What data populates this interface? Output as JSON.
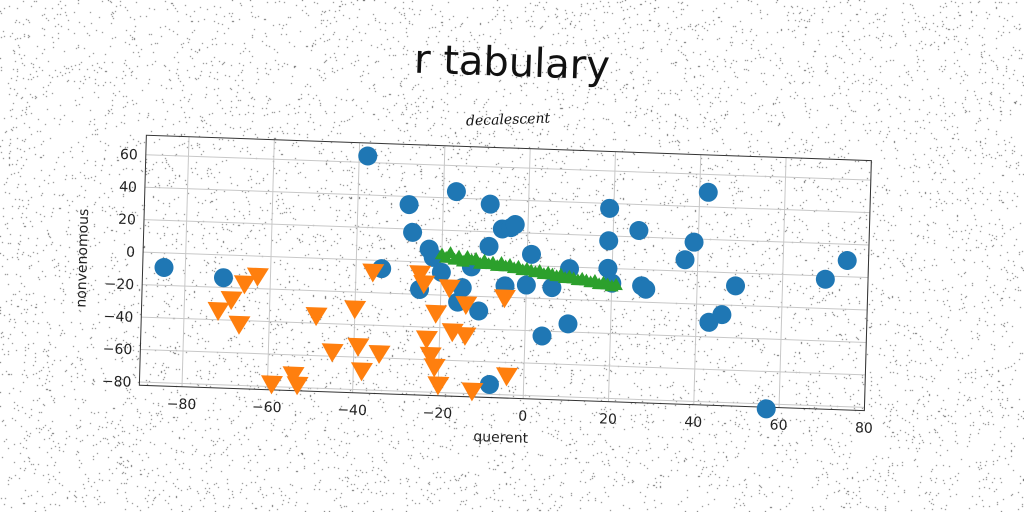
{
  "title": "r tabulary",
  "chart_data": {
    "type": "scatter",
    "title": "r tabulary",
    "subtitle": "decalescent",
    "xlabel": "querent",
    "ylabel": "nonvenomous",
    "xlim": [
      -90,
      80
    ],
    "ylim": [
      -82,
      72
    ],
    "xticks": [
      -80,
      -60,
      -40,
      -20,
      0,
      20,
      40,
      60,
      80
    ],
    "yticks": [
      60,
      40,
      20,
      0,
      -20,
      -40,
      -60,
      -80
    ],
    "grid": true,
    "series": [
      {
        "marker": "circle",
        "color": "#1f77b4",
        "points": [
          [
            -85,
            -9
          ],
          [
            -71,
            -14
          ],
          [
            -38,
            64
          ],
          [
            -34,
            -5
          ],
          [
            -28,
            35
          ],
          [
            -27,
            18
          ],
          [
            -25,
            -17
          ],
          [
            -23,
            8
          ],
          [
            -22,
            3
          ],
          [
            -20,
            -6
          ],
          [
            -17,
            44
          ],
          [
            -16,
            -24
          ],
          [
            -15,
            -15
          ],
          [
            -13,
            -2
          ],
          [
            -11,
            -29
          ],
          [
            -9,
            37
          ],
          [
            -9,
            11
          ],
          [
            -8,
            -74
          ],
          [
            -6,
            22
          ],
          [
            -5,
            -13
          ],
          [
            -4,
            23
          ],
          [
            -3,
            25
          ],
          [
            0,
            -12
          ],
          [
            1,
            7
          ],
          [
            4,
            -43
          ],
          [
            6,
            -13
          ],
          [
            10,
            -1
          ],
          [
            10,
            -35
          ],
          [
            19,
            37
          ],
          [
            19,
            0
          ],
          [
            19,
            17
          ],
          [
            20,
            -9
          ],
          [
            26,
            24
          ],
          [
            27,
            -10
          ],
          [
            28,
            -12
          ],
          [
            37,
            7
          ],
          [
            39,
            18
          ],
          [
            42,
            49
          ],
          [
            43,
            -31
          ],
          [
            46,
            -26
          ],
          [
            49,
            -8
          ],
          [
            57,
            -83
          ],
          [
            70,
            -2
          ],
          [
            75,
            10
          ]
        ]
      },
      {
        "marker": "triangle-down",
        "color": "#ff7f0e",
        "points": [
          [
            -72,
            -34
          ],
          [
            -69,
            -27
          ],
          [
            -67,
            -42
          ],
          [
            -66,
            -17
          ],
          [
            -63,
            -12
          ],
          [
            -59,
            -78
          ],
          [
            -54,
            -72
          ],
          [
            -53,
            -78
          ],
          [
            -49,
            -35
          ],
          [
            -45,
            -57
          ],
          [
            -40,
            -30
          ],
          [
            -39,
            -53
          ],
          [
            -38,
            -68
          ],
          [
            -36,
            -7
          ],
          [
            -34,
            -57
          ],
          [
            -25,
            -7
          ],
          [
            -24,
            -13
          ],
          [
            -23,
            -47
          ],
          [
            -22,
            -57
          ],
          [
            -21,
            -31
          ],
          [
            -21,
            -64
          ],
          [
            -20,
            -75
          ],
          [
            -18,
            -15
          ],
          [
            -17,
            -42
          ],
          [
            -14,
            -25
          ],
          [
            -14,
            -44
          ],
          [
            -12,
            -78
          ],
          [
            -5,
            -20
          ],
          [
            -4,
            -68
          ]
        ]
      },
      {
        "marker": "triangle-up",
        "color": "#2ca02c",
        "points": [
          [
            -20,
            5
          ],
          [
            -19,
            3
          ],
          [
            -18,
            6
          ],
          [
            -17,
            2
          ],
          [
            -16,
            4
          ],
          [
            -15,
            1
          ],
          [
            -14,
            4
          ],
          [
            -13,
            2
          ],
          [
            -12,
            3
          ],
          [
            -11,
            0
          ],
          [
            -10,
            2
          ],
          [
            -9,
            0
          ],
          [
            -8,
            1
          ],
          [
            -7,
            -1
          ],
          [
            -6,
            1
          ],
          [
            -5,
            -1
          ],
          [
            -4,
            0
          ],
          [
            -3,
            -2
          ],
          [
            -2,
            -1
          ],
          [
            -1,
            -3
          ],
          [
            0,
            -2
          ],
          [
            1,
            -3
          ],
          [
            2,
            -4
          ],
          [
            3,
            -3
          ],
          [
            4,
            -5
          ],
          [
            5,
            -4
          ],
          [
            6,
            -5
          ],
          [
            7,
            -6
          ],
          [
            8,
            -5
          ],
          [
            9,
            -7
          ],
          [
            10,
            -6
          ],
          [
            11,
            -7
          ],
          [
            12,
            -8
          ],
          [
            13,
            -7
          ],
          [
            14,
            -8
          ],
          [
            15,
            -9
          ],
          [
            16,
            -8
          ],
          [
            17,
            -10
          ],
          [
            18,
            -9
          ],
          [
            19,
            -10
          ],
          [
            20,
            -11
          ],
          [
            21,
            -10
          ]
        ]
      }
    ]
  }
}
